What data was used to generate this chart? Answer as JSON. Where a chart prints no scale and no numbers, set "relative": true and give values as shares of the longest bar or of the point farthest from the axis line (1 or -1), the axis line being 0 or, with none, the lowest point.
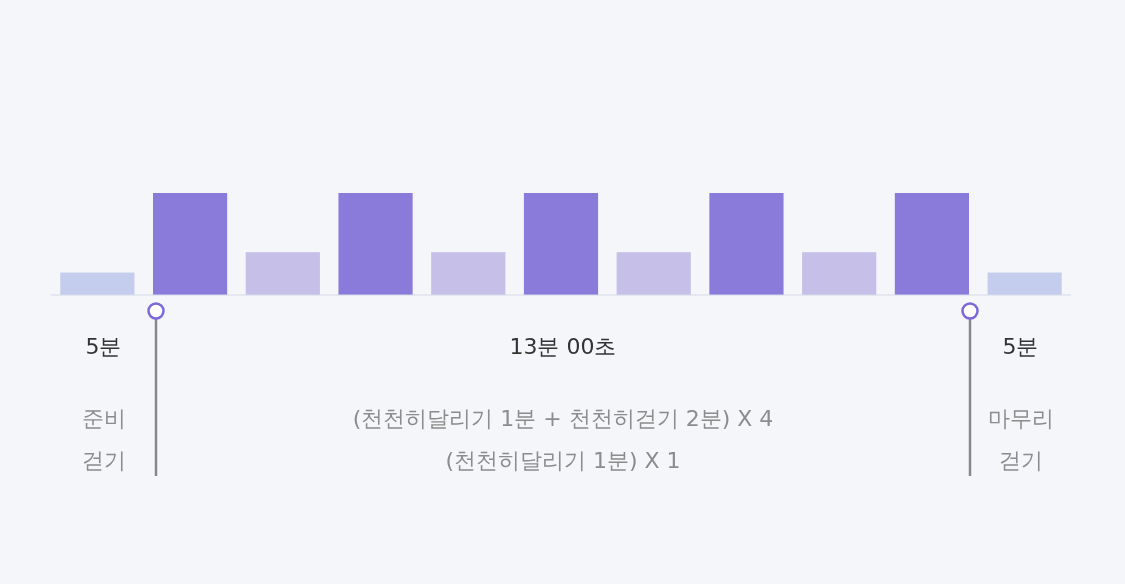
{
  "chart_data": {
    "type": "bar",
    "relative": true,
    "categories": [
      null,
      null,
      null,
      null,
      null,
      null,
      null,
      null,
      null,
      null,
      null
    ],
    "values": [
      0.22,
      1,
      0.42,
      1,
      0.42,
      1,
      0.42,
      1,
      0.42,
      1,
      0.22
    ],
    "colors": [
      "#c5cdef",
      "#8a7bdb",
      "#c6bfe8",
      "#8a7bdb",
      "#c6bfe8",
      "#8a7bdb",
      "#c6bfe8",
      "#8a7bdb",
      "#c6bfe8",
      "#8a7bdb",
      "#c5cdef"
    ],
    "annotations": [
      "5분",
      "13분 00초",
      "5분",
      "준비\n걷기",
      "(천천히달리기 1분 + 천천히걷기 2분) X 4\n(천천히달리기 1분) X 1",
      "마무리\n걷기"
    ]
  }
}
